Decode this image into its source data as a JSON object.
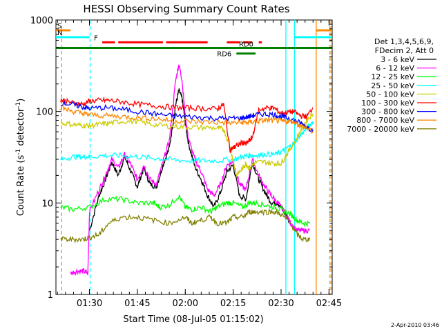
{
  "chart_data": {
    "type": "line",
    "title": "HESSI Observing Summary Count Rates",
    "xlabel": "Start Time (08-Jul-05 01:15:02)",
    "ylabel": "Count Rate (s⁻¹ detector⁻¹)",
    "ylabel_parts": {
      "main": "Count Rate (s",
      "sup1": "-1",
      "mid": " detector",
      "sup2": "-1",
      "end": ")"
    },
    "yscale": "log",
    "ylim": [
      1,
      1000
    ],
    "xlim_min": [
      19.5,
      106
    ],
    "x_unit": "minutes after 01:00 UT",
    "yticks": [
      {
        "v": 1,
        "label": "1"
      },
      {
        "v": 10,
        "label": "10"
      },
      {
        "v": 100,
        "label": "100"
      },
      {
        "v": 1000,
        "label": "1000"
      }
    ],
    "xticks": [
      {
        "t": 30,
        "label": "01:30"
      },
      {
        "t": 45,
        "label": "01:45"
      },
      {
        "t": 60,
        "label": "02:00"
      },
      {
        "t": 75,
        "label": "02:15"
      },
      {
        "t": 90,
        "label": "02:30"
      },
      {
        "t": 105,
        "label": "02:45"
      }
    ],
    "legend_header": [
      "Det 1,3,4,5,6,9,",
      "FDecim 2, Att 0"
    ],
    "series": [
      {
        "name": "3 - 6 keV",
        "color": "#000000",
        "x": [
          30,
          33,
          35,
          37,
          39,
          41,
          43,
          45,
          47,
          49,
          51,
          53,
          55,
          57,
          58,
          59,
          60,
          61,
          63,
          65,
          67,
          69,
          71,
          73,
          75,
          77,
          79,
          81,
          83,
          85,
          87,
          89,
          91,
          93
        ],
        "y": [
          5,
          12,
          18,
          28,
          20,
          32,
          22,
          15,
          24,
          16,
          15,
          26,
          40,
          120,
          170,
          140,
          75,
          45,
          25,
          18,
          12,
          9,
          13,
          22,
          26,
          12,
          11,
          28,
          18,
          13,
          10,
          10,
          8,
          6
        ]
      },
      {
        "name": "6 - 12 keV",
        "color": "#ff00ff",
        "x": [
          24,
          26,
          28,
          29.5,
          30,
          33,
          35,
          37,
          39,
          41,
          43,
          45,
          47,
          49,
          51,
          53,
          55,
          57,
          58,
          59,
          60,
          61,
          63,
          65,
          67,
          69,
          71,
          73,
          75,
          77,
          79,
          81,
          83,
          85,
          87,
          89,
          91,
          93,
          95,
          97,
          99
        ],
        "y": [
          1.7,
          1.8,
          1.8,
          1.7,
          8,
          14,
          20,
          30,
          24,
          34,
          26,
          18,
          26,
          18,
          16,
          28,
          48,
          220,
          330,
          220,
          90,
          50,
          30,
          22,
          14,
          12,
          16,
          26,
          28,
          16,
          14,
          30,
          20,
          15,
          12,
          10,
          8,
          6,
          5,
          5,
          5
        ]
      },
      {
        "name": "12 - 25 keV",
        "color": "#00ff00",
        "x": [
          21,
          25,
          30,
          35,
          40,
          45,
          50,
          52,
          55,
          58,
          60,
          62,
          65,
          68,
          70,
          73,
          75,
          78,
          80,
          82,
          85,
          88,
          90,
          93,
          95,
          97,
          99
        ],
        "y": [
          9,
          8.5,
          9,
          11,
          11,
          10,
          10,
          9,
          9.5,
          12,
          9,
          8.5,
          9,
          8,
          9,
          10,
          10,
          9,
          10,
          10,
          9.5,
          9,
          8.5,
          7.5,
          6.5,
          6,
          6
        ]
      },
      {
        "name": "25 - 50 keV",
        "color": "#00ffff",
        "x": [
          21,
          25,
          28,
          30,
          35,
          40,
          45,
          50,
          55,
          60,
          65,
          70,
          75,
          78,
          80,
          82,
          85,
          88,
          90,
          92,
          94,
          96,
          98,
          100
        ],
        "y": [
          30,
          32,
          32,
          32,
          33,
          33,
          32,
          31,
          30,
          29,
          29,
          29,
          30,
          32,
          33,
          33,
          34,
          34,
          36,
          40,
          45,
          55,
          65,
          78
        ]
      },
      {
        "name": "50 - 100 keV",
        "color": "#cccc00",
        "x": [
          21,
          25,
          28,
          30,
          33,
          36,
          40,
          45,
          50,
          55,
          60,
          65,
          70,
          72,
          74,
          76,
          78,
          79,
          80,
          82,
          85,
          88,
          90,
          92,
          94,
          96,
          98,
          100
        ],
        "y": [
          75,
          72,
          70,
          70,
          72,
          74,
          78,
          78,
          72,
          69,
          68,
          67,
          66,
          64,
          42,
          20,
          24,
          27,
          24,
          28,
          28,
          27,
          27,
          35,
          45,
          60,
          80,
          95
        ]
      },
      {
        "name": "100 - 300 keV",
        "color": "#ff0000",
        "x": [
          21,
          23,
          26,
          28,
          30,
          33,
          36,
          40,
          45,
          50,
          55,
          60,
          65,
          70,
          72,
          74,
          75,
          76,
          78,
          79,
          80,
          81,
          83,
          86,
          88,
          90,
          92,
          94,
          96,
          98,
          100
        ],
        "y": [
          135,
          128,
          122,
          120,
          130,
          132,
          132,
          128,
          120,
          116,
          112,
          110,
          108,
          106,
          120,
          38,
          40,
          42,
          46,
          44,
          48,
          52,
          105,
          110,
          108,
          95,
          98,
          100,
          90,
          88,
          110
        ]
      },
      {
        "name": "300 - 800 keV",
        "color": "#0000ff",
        "x": [
          21,
          25,
          28,
          30,
          35,
          40,
          45,
          50,
          55,
          60,
          65,
          70,
          75,
          78,
          80,
          82,
          85,
          88,
          90,
          92,
          94,
          96,
          98,
          100
        ],
        "y": [
          125,
          118,
          112,
          108,
          110,
          106,
          100,
          95,
          90,
          88,
          86,
          84,
          84,
          85,
          88,
          92,
          94,
          92,
          88,
          85,
          80,
          75,
          68,
          62
        ]
      },
      {
        "name": "800 - 7000 keV",
        "color": "#ff8800",
        "x": [
          21,
          25,
          28,
          30,
          35,
          40,
          45,
          50,
          55,
          60,
          65,
          70,
          75,
          78,
          80,
          82,
          85,
          88,
          90,
          92,
          94,
          96,
          98,
          100
        ],
        "y": [
          110,
          100,
          95,
          92,
          90,
          88,
          86,
          84,
          80,
          78,
          77,
          76,
          75,
          76,
          76,
          78,
          80,
          80,
          78,
          78,
          78,
          70,
          66,
          60
        ]
      },
      {
        "name": "7000 - 20000 keV",
        "color": "#808000",
        "x": [
          21,
          25,
          28,
          30,
          33,
          36,
          40,
          45,
          50,
          55,
          60,
          62,
          65,
          68,
          70,
          73,
          75,
          78,
          80,
          82,
          85,
          88,
          90,
          93,
          95,
          97,
          99
        ],
        "y": [
          4,
          4,
          4,
          4.2,
          4.5,
          6,
          7,
          7,
          6.5,
          6,
          7,
          6,
          6.5,
          7,
          6,
          6,
          7,
          7,
          8,
          8,
          8,
          8,
          7.5,
          6,
          4.5,
          4,
          4
        ]
      }
    ],
    "state_bars": [
      {
        "label": "S",
        "color": "#ff8800",
        "y": 770,
        "x0": 19.5,
        "x1": 24
      },
      {
        "label": "",
        "color": "#ff8800",
        "y": 770,
        "x0": 101,
        "x1": 106
      },
      {
        "label": "N",
        "color": "#00ffff",
        "y": 650,
        "x0": 19.5,
        "x1": 30
      },
      {
        "label": "",
        "color": "#00ffff",
        "y": 650,
        "x0": 94,
        "x1": 106
      },
      {
        "label": "F",
        "color": "#ff0000",
        "y": 570,
        "x0": 34,
        "x1": 38
      },
      {
        "label": "",
        "color": "#ff0000",
        "y": 570,
        "x0": 39,
        "x1": 53
      },
      {
        "label": "",
        "color": "#ff0000",
        "y": 570,
        "x0": 54,
        "x1": 67
      },
      {
        "label": "",
        "color": "#ff0000",
        "y": 570,
        "x0": 73,
        "x1": 77
      },
      {
        "label": "",
        "color": "#ff0000",
        "y": 570,
        "x0": 78,
        "x1": 81
      },
      {
        "label": "",
        "color": "#ff0000",
        "y": 570,
        "x0": 83,
        "x1": 84
      },
      {
        "label": "RD0",
        "color": "#008000",
        "y": 495,
        "x0": 19.5,
        "x1": 106
      },
      {
        "label": "RD6",
        "color": "#008000",
        "y": 430,
        "x0": 76,
        "x1": 82
      }
    ],
    "vlines": [
      {
        "t": 21.3,
        "color": "#ff8800",
        "dash": true
      },
      {
        "t": 30.2,
        "color": "#00ffff",
        "dash": true
      },
      {
        "t": 91.5,
        "color": "#00ffff",
        "dash": false
      },
      {
        "t": 94.2,
        "color": "#00ffff",
        "dash": false
      },
      {
        "t": 101,
        "color": "#ff8800",
        "dash": false
      },
      {
        "t": 105.2,
        "color": "#00ffff",
        "dash": true
      },
      {
        "t": 105.6,
        "color": "#ff8800",
        "dash": true
      }
    ]
  },
  "timestamp": "2-Apr-2010 03:46"
}
